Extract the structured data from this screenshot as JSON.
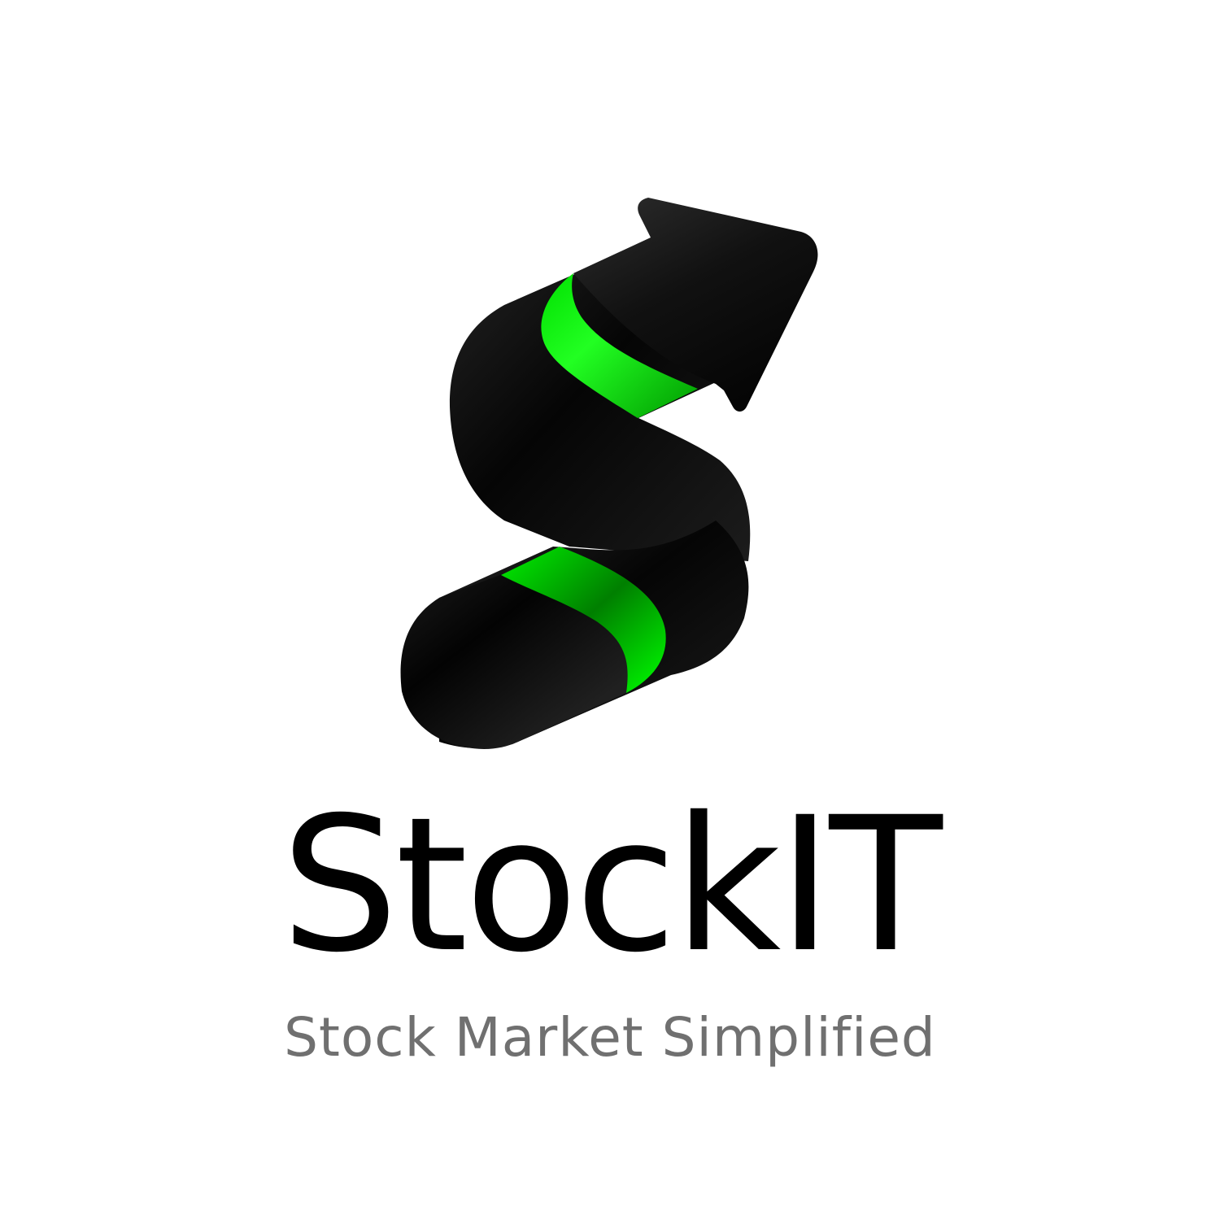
{
  "brand": {
    "name": "StockIT",
    "tagline": "Stock Market Simplified"
  },
  "colors": {
    "background": "#ffffff",
    "brand_text": "#000000",
    "tagline_text": "#707070",
    "mark_dark": "#0a0a0a",
    "mark_highlight": "#2c2c2c",
    "accent_green": "#00ff00",
    "accent_green_dark": "#008a00"
  },
  "logo": {
    "icon": "rising-arrow-s-icon"
  }
}
